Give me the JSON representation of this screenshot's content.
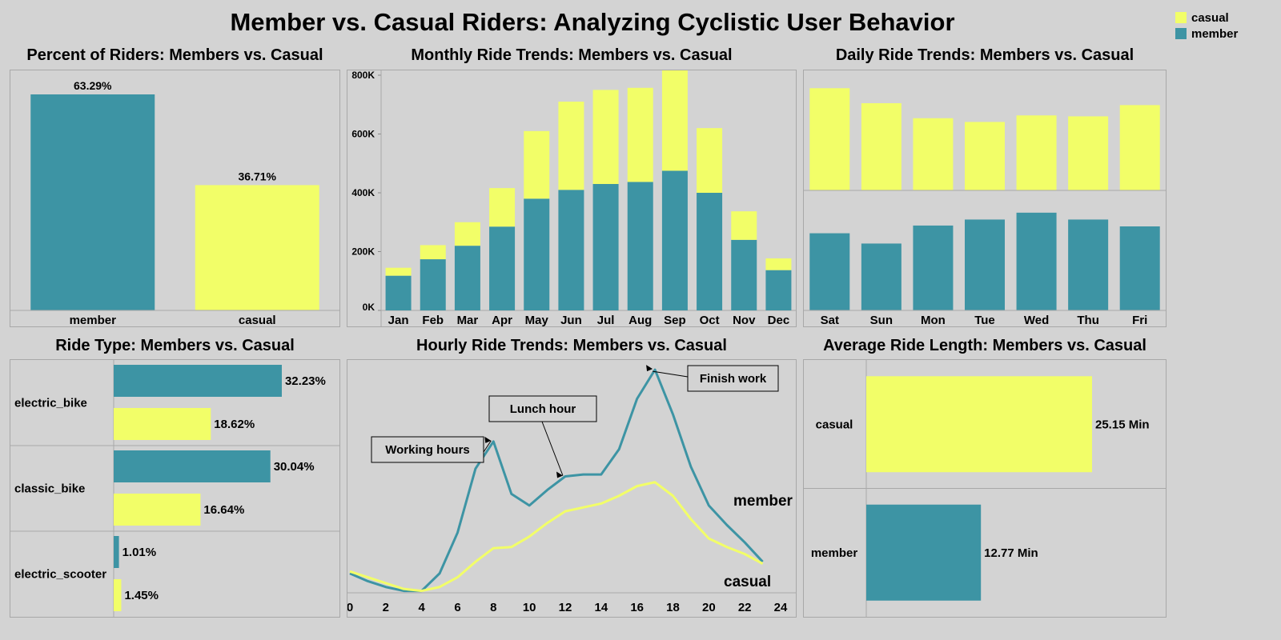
{
  "title": "Member vs. Casual Riders: Analyzing Cyclistic User Behavior",
  "colors": {
    "member": "#3d94a4",
    "casual": "#f2fe68"
  },
  "legend": [
    {
      "label": "casual",
      "color": "#f2fe68"
    },
    {
      "label": "member",
      "color": "#3d94a4"
    }
  ],
  "chart_data": [
    {
      "id": "percent",
      "type": "bar",
      "title": "Percent of Riders: Members vs. Casual",
      "categories": [
        "member",
        "casual"
      ],
      "values": [
        63.29,
        36.71
      ],
      "labels": [
        "63.29%",
        "36.71%"
      ],
      "ylim": [
        0,
        63.29
      ]
    },
    {
      "id": "monthly",
      "type": "bar",
      "stacked": true,
      "title": "Monthly Ride Trends: Members vs. Casual",
      "categories": [
        "Jan",
        "Feb",
        "Mar",
        "Apr",
        "May",
        "Jun",
        "Jul",
        "Aug",
        "Sep",
        "Oct",
        "Nov",
        "Dec"
      ],
      "series": [
        {
          "name": "member",
          "values": [
            118000,
            174000,
            220000,
            285000,
            380000,
            410000,
            430000,
            437000,
            475000,
            400000,
            240000,
            137000
          ]
        },
        {
          "name": "casual",
          "values": [
            27000,
            48000,
            80000,
            131000,
            230000,
            300000,
            320000,
            320000,
            345000,
            220000,
            97000,
            40000
          ]
        }
      ],
      "yticks": [
        0,
        200000,
        400000,
        600000,
        800000
      ],
      "ytick_labels": [
        "0K",
        "200K",
        "400K",
        "600K",
        "800K"
      ],
      "ylim": [
        0,
        800000
      ]
    },
    {
      "id": "daily",
      "type": "bar",
      "title": "Daily Ride Trends: Members vs. Casual",
      "categories": [
        "Sat",
        "Sun",
        "Mon",
        "Tue",
        "Wed",
        "Thu",
        "Fri"
      ],
      "series": [
        {
          "name": "casual",
          "values": [
            545000,
            465000,
            385000,
            365000,
            400000,
            395000,
            455000
          ],
          "ylim": [
            0,
            640000
          ]
        },
        {
          "name": "member",
          "values": [
            450000,
            390000,
            495000,
            530000,
            570000,
            530000,
            490000
          ],
          "ylim": [
            0,
            700000
          ]
        }
      ]
    },
    {
      "id": "ridetype",
      "type": "bar",
      "orientation": "horizontal",
      "title": "Ride Type: Members vs. Casual",
      "categories": [
        "electric_bike",
        "classic_bike",
        "electric_scooter"
      ],
      "series": [
        {
          "name": "member",
          "values": [
            32.23,
            30.04,
            1.01
          ],
          "labels": [
            "32.23%",
            "30.04%",
            "1.01%"
          ]
        },
        {
          "name": "casual",
          "values": [
            18.62,
            16.64,
            1.45
          ],
          "labels": [
            "18.62%",
            "16.64%",
            "1.45%"
          ]
        }
      ],
      "xlim": [
        0,
        33
      ]
    },
    {
      "id": "hourly",
      "type": "line",
      "title": "Hourly Ride Trends: Members vs. Casual",
      "x": [
        0,
        1,
        2,
        3,
        4,
        5,
        6,
        7,
        8,
        9,
        10,
        11,
        12,
        13,
        14,
        15,
        16,
        17,
        18,
        19,
        20,
        21,
        22,
        23
      ],
      "xticks": [
        0,
        2,
        4,
        6,
        8,
        10,
        12,
        14,
        16,
        18,
        20,
        22,
        24
      ],
      "series": [
        {
          "name": "member",
          "values": [
            50,
            30,
            15,
            5,
            5,
            50,
            155,
            320,
            390,
            255,
            225,
            265,
            300,
            305,
            305,
            370,
            500,
            575,
            460,
            325,
            225,
            175,
            130,
            80
          ]
        },
        {
          "name": "casual",
          "values": [
            55,
            40,
            25,
            10,
            5,
            15,
            40,
            80,
            115,
            118,
            145,
            180,
            210,
            220,
            230,
            250,
            275,
            285,
            250,
            190,
            140,
            118,
            100,
            75
          ]
        }
      ],
      "ylim": [
        0,
        600
      ],
      "series_labels": [
        "member",
        "casual"
      ],
      "annotations": [
        {
          "text": "Working hours",
          "x": 8,
          "series": "member"
        },
        {
          "text": "Lunch hour",
          "x": 12,
          "series": "member"
        },
        {
          "text": "Finish work",
          "x": 17,
          "series": "member"
        }
      ]
    },
    {
      "id": "length",
      "type": "bar",
      "orientation": "horizontal",
      "title": "Average Ride Length: Members vs. Casual",
      "categories": [
        "casual",
        "member"
      ],
      "values": [
        25.15,
        12.77
      ],
      "labels": [
        "25.15 Min",
        "12.77 Min"
      ],
      "xlim": [
        0,
        25.15
      ]
    }
  ]
}
